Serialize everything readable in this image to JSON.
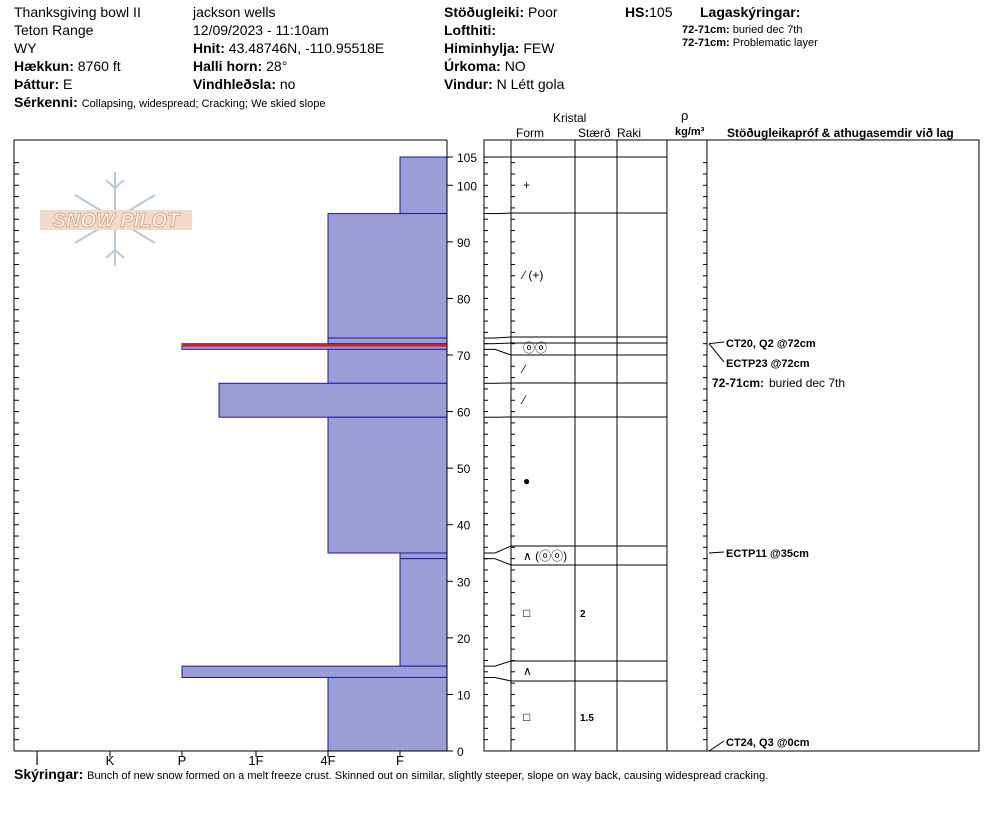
{
  "header": {
    "col1": [
      "Thanksgiving bowl II",
      "Teton Range",
      "WY"
    ],
    "elevation": {
      "label": "Hækkun:",
      "value": "8760 ft"
    },
    "aspect": {
      "label": "Þáttur:",
      "value": "E"
    },
    "observer": "jackson wells",
    "datetime": "12/09/2023 - 11:10am",
    "coords": {
      "label": "Hnit:",
      "value": "43.48746N, -110.95518E"
    },
    "slope": {
      "label": "Halli horn:",
      "value": "28°"
    },
    "wind_loading": {
      "label": "Vindhleðsla:",
      "value": "no"
    },
    "stability": {
      "label": "Stöðugleiki:",
      "value": "Poor"
    },
    "air_temp": {
      "label": "Lofthiti:",
      "value": ""
    },
    "sky": {
      "label": "Himinhylja:",
      "value": "FEW"
    },
    "precip": {
      "label": "Úrkoma:",
      "value": "NO"
    },
    "wind": {
      "label": "Vindur:",
      "value": "N Létt gola"
    },
    "hs": {
      "label": "HS:",
      "value": "105"
    },
    "features": {
      "label": "Sérkenni:",
      "value": "Collapsing, widespread;  Cracking;  We skied slope"
    },
    "layer_notes": {
      "title": "Lagaskýringar:",
      "items": [
        {
          "depth": "72-71cm:",
          "note": "buried dec 7th"
        },
        {
          "depth": "72-71cm:",
          "note": "Problematic layer"
        }
      ]
    }
  },
  "logo_text": "SNOW PILOT",
  "column_headers": {
    "crystal": "Kristal",
    "form": "Form",
    "size": "Stærð",
    "moisture": "Raki",
    "rho": "ρ",
    "density_unit": "kg/m³",
    "tests": "Stöðugleikapróf & athugasemdir við lag"
  },
  "footer": {
    "label": "Skýringar:",
    "text": "Bunch of new snow formed on a melt freeze crust. Skinned out on similar, slightly steeper, slope on way back, causing widespread cracking."
  },
  "chart_data": {
    "type": "snow-profile",
    "hardness_scale": [
      "I",
      "K",
      "P",
      "1F",
      "4F",
      "F"
    ],
    "depth_ticks": [
      105,
      100,
      90,
      80,
      70,
      60,
      50,
      40,
      30,
      20,
      10,
      0
    ],
    "ylim": [
      0,
      105
    ],
    "layers": [
      {
        "top": 105,
        "bottom": 95,
        "hardness": 5,
        "form": "+",
        "size": "",
        "red": false
      },
      {
        "top": 95,
        "bottom": 73,
        "hardness": 4,
        "form": "⁄ (+)",
        "size": "",
        "red": false
      },
      {
        "top": 73,
        "bottom": 72,
        "hardness": 4,
        "form": "",
        "size": "",
        "red": false
      },
      {
        "top": 72,
        "bottom": 71,
        "hardness": 2,
        "form": "ⓞⓞ",
        "size": "",
        "red": true
      },
      {
        "top": 71,
        "bottom": 65,
        "hardness": 4,
        "form": "⁄",
        "size": "",
        "red": false
      },
      {
        "top": 65,
        "bottom": 59,
        "hardness": 2.5,
        "form": "⁄",
        "size": "",
        "red": false
      },
      {
        "top": 59,
        "bottom": 35,
        "hardness": 4,
        "form": "●",
        "size": "",
        "red": false
      },
      {
        "top": 35,
        "bottom": 34,
        "hardness": 5,
        "form": "∧ (ⓞⓞ)",
        "size": "",
        "red": false
      },
      {
        "top": 34,
        "bottom": 15,
        "hardness": 5,
        "form": "□",
        "size": "2",
        "red": false
      },
      {
        "top": 15,
        "bottom": 13,
        "hardness": 2,
        "form": "∧",
        "size": "",
        "red": false
      },
      {
        "top": 13,
        "bottom": 0,
        "hardness": 4,
        "form": "□",
        "size": "1.5",
        "red": false
      }
    ],
    "tests": [
      {
        "depth": 72,
        "label": "CT20, Q2 @72cm"
      },
      {
        "depth": 72,
        "label": "ECTP23 @72cm"
      },
      {
        "depth": 35,
        "label": "ECTP11 @35cm"
      },
      {
        "depth": 0,
        "label": "CT24, Q3 @0cm"
      }
    ],
    "layer_comment": {
      "depth": "72-71cm:",
      "text": "buried dec 7th"
    }
  }
}
